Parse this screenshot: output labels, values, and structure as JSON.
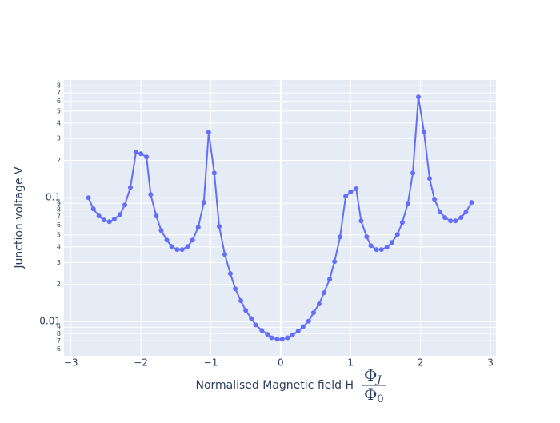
{
  "chart_data": {
    "type": "line",
    "y_label": "Junction voltage V",
    "x_label": "Normalised Magnetic field H",
    "x_label_fraction": {
      "numerator": "Φ",
      "numerator_sub": "J",
      "denominator": "Φ",
      "denominator_sub": "0"
    },
    "x": [
      -2.75,
      -2.68,
      -2.6,
      -2.53,
      -2.45,
      -2.38,
      -2.3,
      -2.23,
      -2.15,
      -2.07,
      -2.0,
      -1.92,
      -1.86,
      -1.78,
      -1.71,
      -1.63,
      -1.56,
      -1.48,
      -1.41,
      -1.33,
      -1.26,
      -1.18,
      -1.1,
      -1.03,
      -0.95,
      -0.88,
      -0.8,
      -0.72,
      -0.65,
      -0.57,
      -0.5,
      -0.42,
      -0.36,
      -0.27,
      -0.19,
      -0.13,
      -0.05,
      0.02,
      0.1,
      0.17,
      0.25,
      0.32,
      0.4,
      0.47,
      0.55,
      0.62,
      0.7,
      0.77,
      0.85,
      0.93,
      1.0,
      1.08,
      1.15,
      1.23,
      1.29,
      1.37,
      1.44,
      1.52,
      1.59,
      1.67,
      1.74,
      1.82,
      1.89,
      1.97,
      2.05,
      2.13,
      2.2,
      2.28,
      2.35,
      2.43,
      2.5,
      2.58,
      2.65,
      2.73
    ],
    "series": [
      {
        "color": "#636efa",
        "values": [
          0.1,
          0.0812,
          0.0711,
          0.066,
          0.064,
          0.067,
          0.0732,
          0.0875,
          0.121,
          0.233,
          0.226,
          0.213,
          0.106,
          0.0711,
          0.0544,
          0.0455,
          0.0404,
          0.0381,
          0.0381,
          0.0404,
          0.0455,
          0.0577,
          0.0915,
          0.338,
          0.158,
          0.0586,
          0.0348,
          0.0244,
          0.0184,
          0.0147,
          0.0123,
          0.0106,
          0.0094,
          0.0085,
          0.0079,
          0.0074,
          0.0072,
          0.0072,
          0.0074,
          0.0078,
          0.0084,
          0.0091,
          0.0101,
          0.0118,
          0.0139,
          0.0171,
          0.022,
          0.0305,
          0.0483,
          0.103,
          0.111,
          0.118,
          0.065,
          0.0483,
          0.041,
          0.0381,
          0.0381,
          0.0398,
          0.0435,
          0.0505,
          0.0631,
          0.0901,
          0.158,
          0.65,
          0.338,
          0.143,
          0.0971,
          0.0765,
          0.069,
          0.065,
          0.065,
          0.069,
          0.0765,
          0.0915
        ]
      }
    ],
    "xlim": [
      -3.1,
      3.08
    ],
    "xticks": [
      {
        "value": -3,
        "label": "−3"
      },
      {
        "value": -2,
        "label": "−2"
      },
      {
        "value": -1,
        "label": "−1"
      },
      0,
      1,
      2,
      3
    ],
    "ylim": [
      0.0053,
      0.89
    ],
    "log_y": true,
    "yticks": [
      {
        "value": 0.006,
        "label": "6"
      },
      {
        "value": 0.007,
        "label": "7"
      },
      {
        "value": 0.008,
        "label": "8"
      },
      {
        "value": 0.009,
        "label": "9"
      },
      0.01,
      {
        "value": 0.02,
        "label": "2"
      },
      {
        "value": 0.03,
        "label": "3"
      },
      {
        "value": 0.04,
        "label": "4"
      },
      {
        "value": 0.05,
        "label": "5"
      },
      {
        "value": 0.06,
        "label": "6"
      },
      {
        "value": 0.07,
        "label": "7"
      },
      {
        "value": 0.08,
        "label": "8"
      },
      {
        "value": 0.09,
        "label": "9"
      },
      0.1,
      {
        "value": 0.2,
        "label": "2"
      },
      {
        "value": 0.3,
        "label": "3"
      },
      {
        "value": 0.4,
        "label": "4"
      },
      {
        "value": 0.5,
        "label": "5"
      },
      {
        "value": 0.6,
        "label": "6"
      },
      {
        "value": 0.7,
        "label": "7"
      },
      {
        "value": 0.8,
        "label": "8"
      }
    ],
    "grid": true
  }
}
